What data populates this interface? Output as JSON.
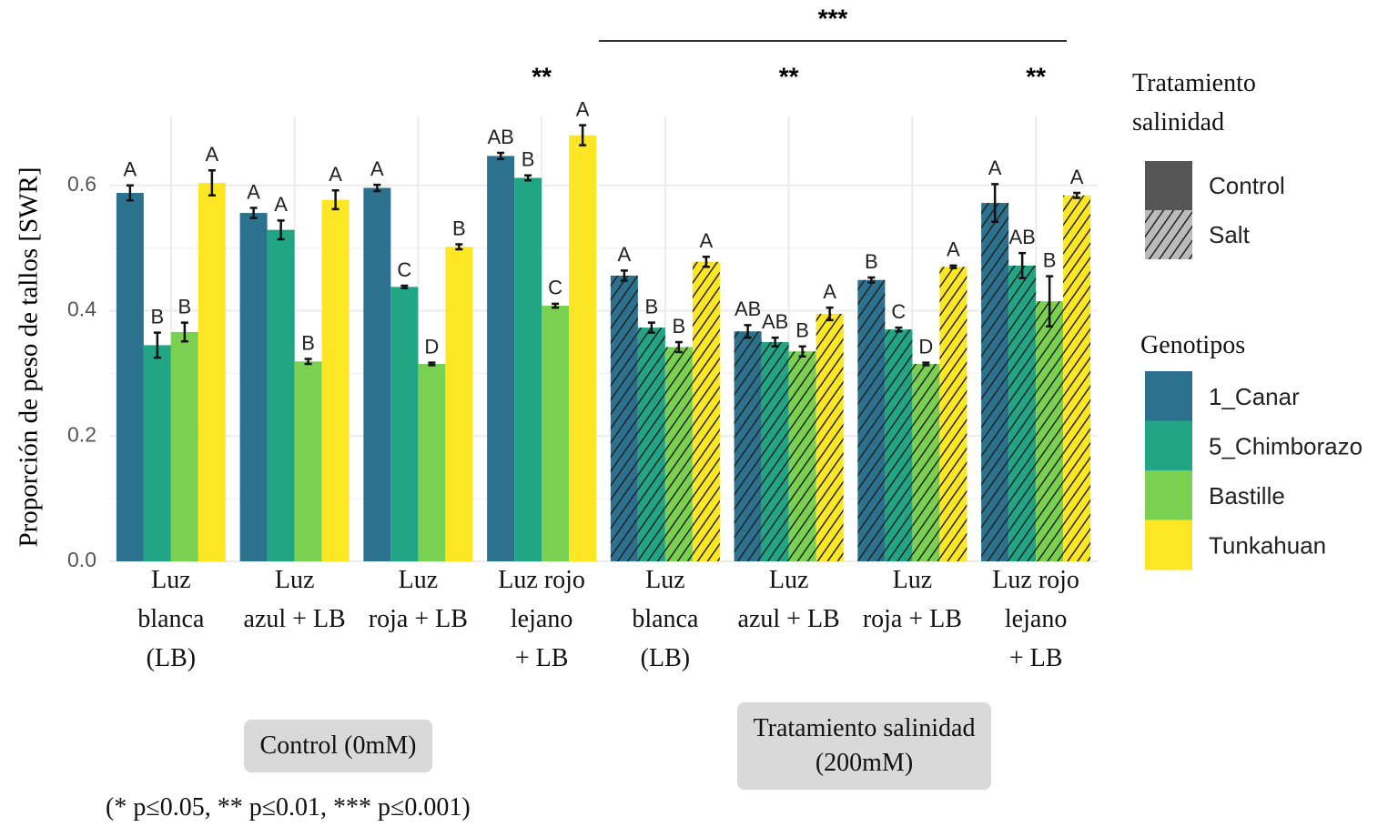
{
  "chart_data": {
    "type": "bar",
    "y_label": "Proporción de peso de tallos  [SWR]",
    "categories": [
      "Luz\nblanca\n(LB)",
      "Luz\nazul + LB",
      "Luz\nroja + LB",
      "Luz rojo\nlejano\n+ LB",
      "Luz\nblanca\n(LB)",
      "Luz\nazul + LB",
      "Luz\nroja + LB",
      "Luz rojo\nlejano\n+ LB"
    ],
    "treatment": [
      "Control",
      "Control",
      "Control",
      "Control",
      "Salt",
      "Salt",
      "Salt",
      "Salt"
    ],
    "series": [
      {
        "name": "1_Canar",
        "color": "#2c728e",
        "values": [
          0.588,
          0.556,
          0.596,
          0.647,
          0.456,
          0.367,
          0.449,
          0.572
        ],
        "errors": [
          0.012,
          0.008,
          0.005,
          0.005,
          0.008,
          0.01,
          0.004,
          0.03
        ],
        "letters": [
          "A",
          "A",
          "A",
          "AB",
          "A",
          "AB",
          "B",
          "A"
        ]
      },
      {
        "name": "5_Chimborazo",
        "color": "#21a585",
        "values": [
          0.345,
          0.529,
          0.438,
          0.612,
          0.373,
          0.35,
          0.37,
          0.472
        ],
        "errors": [
          0.02,
          0.015,
          0.002,
          0.004,
          0.008,
          0.007,
          0.003,
          0.02
        ],
        "letters": [
          "B",
          "A",
          "C",
          "B",
          "B",
          "AB",
          "C",
          "AB"
        ]
      },
      {
        "name": "Bastille",
        "color": "#7ad151",
        "values": [
          0.366,
          0.319,
          0.315,
          0.408,
          0.342,
          0.335,
          0.315,
          0.415
        ],
        "errors": [
          0.015,
          0.004,
          0.002,
          0.003,
          0.008,
          0.008,
          0.002,
          0.04
        ],
        "letters": [
          "B",
          "B",
          "D",
          "C",
          "B",
          "B",
          "D",
          "B"
        ]
      },
      {
        "name": "Tunkahuan",
        "color": "#fde725",
        "values": [
          0.604,
          0.577,
          0.502,
          0.68,
          0.478,
          0.395,
          0.47,
          0.584
        ],
        "errors": [
          0.02,
          0.015,
          0.004,
          0.016,
          0.008,
          0.01,
          0.002,
          0.004
        ],
        "letters": [
          "A",
          "A",
          "B",
          "A",
          "A",
          "A",
          "A",
          "A"
        ]
      }
    ],
    "significance": [
      null,
      null,
      null,
      "**",
      null,
      "**",
      null,
      "**"
    ],
    "salt_significance": "***",
    "ylim": [
      0,
      0.71
    ],
    "yticks": [
      {
        "value": 0,
        "label": "0.0"
      },
      0.2,
      0.4,
      0.6
    ],
    "grid": true,
    "pattern_legend": {
      "title": "Tratamiento\nsalinidad",
      "items": [
        "Control",
        "Salt"
      ]
    },
    "color_legend_title": "Genotipos",
    "treatment_labels": [
      "Control (0mM)",
      "Tratamiento salinidad\n(200mM)"
    ],
    "footnote": "(* p≤0.05, ** p≤0.01, *** p≤0.001)"
  }
}
